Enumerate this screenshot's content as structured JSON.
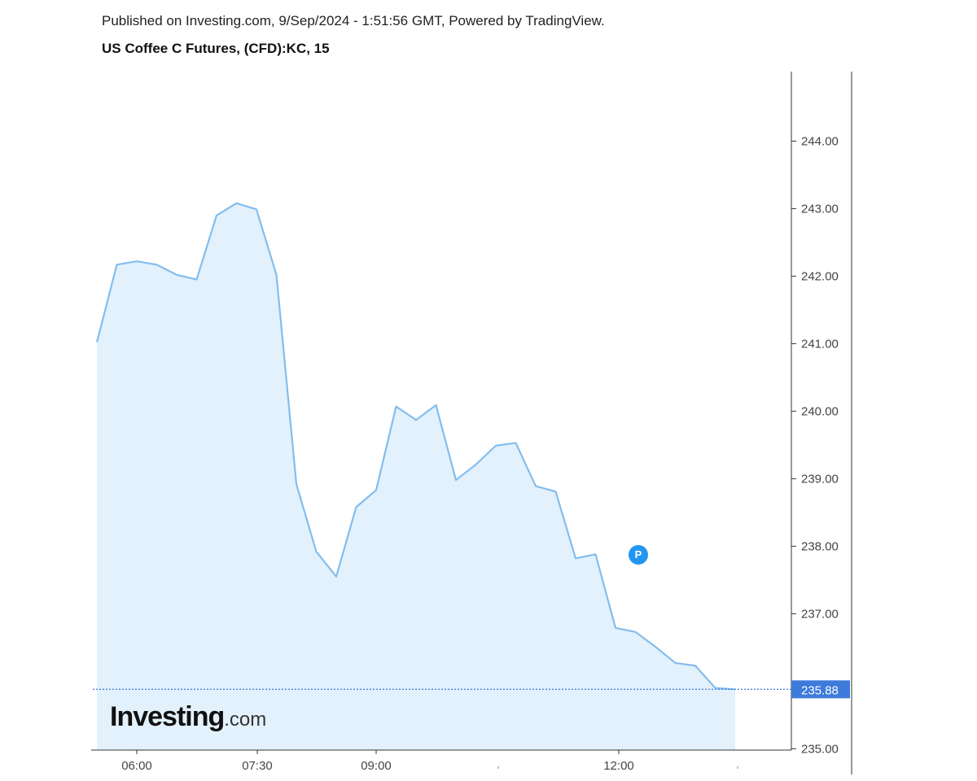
{
  "header": {
    "published": "Published on Investing.com, 9/Sep/2024 - 1:51:56 GMT, Powered by TradingView.",
    "instrument": "US Coffee C Futures, (CFD):KC, 15"
  },
  "logo": {
    "brand": "Investing",
    "tld": ".com"
  },
  "marker": {
    "label": "P"
  },
  "chart_data": {
    "type": "area",
    "x_tick_labels": [
      "06:00",
      "07:30",
      "09:00",
      "12:00"
    ],
    "y_tick_labels": [
      "235.00",
      "237.00",
      "238.00",
      "239.00",
      "240.00",
      "241.00",
      "242.00",
      "243.00",
      "244.00"
    ],
    "ylim": [
      234.98,
      245.03
    ],
    "last_price": {
      "label": "235.88",
      "value": 235.88
    },
    "series": [
      {
        "values": [
          241.02,
          242.17,
          242.22,
          242.17,
          242.02,
          241.95,
          242.9,
          243.08,
          242.99,
          242.02,
          238.92,
          237.92,
          237.55,
          238.58,
          238.83,
          240.07,
          239.87,
          240.09,
          238.98,
          239.21,
          239.49,
          239.53,
          238.89,
          238.81,
          237.82,
          237.88,
          236.79,
          236.73,
          236.51,
          236.27,
          236.23,
          235.9,
          235.88
        ]
      }
    ],
    "colors": {
      "line": "#84bdee",
      "fill": "#e2f1fb",
      "price_box": "#3d7bda",
      "dotted_line": "#4a7fe0",
      "marker": "#2196f3"
    },
    "grid": false
  }
}
